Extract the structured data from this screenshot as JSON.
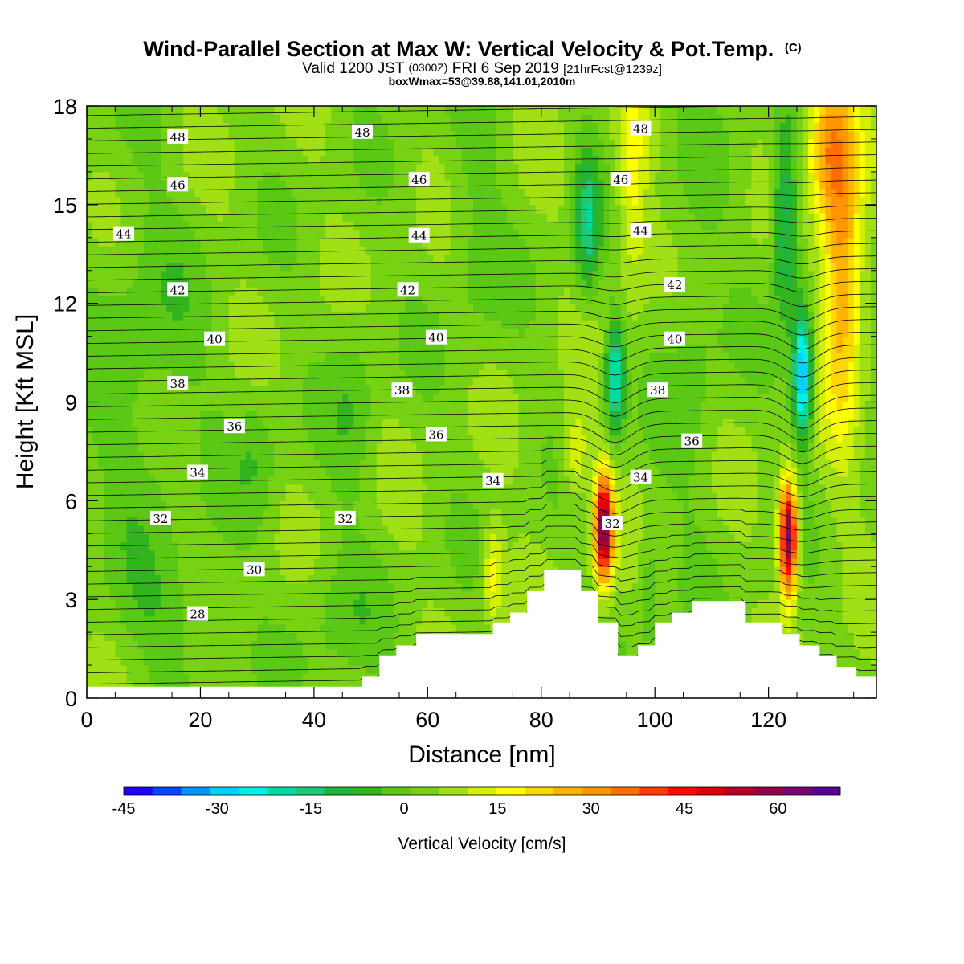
{
  "header": {
    "title_main": "Wind-Parallel Section at Max W: Vertical Velocity & Pot.Temp.",
    "title_mark": "(C)",
    "valid_a": "Valid 1200 JST",
    "valid_b": "(0300Z)",
    "valid_c": "FRI 6 Sep 2019",
    "valid_d": "[21hrFcst@1239z]",
    "boxmax": "boxWmax=53@39.88,141.01,2010m"
  },
  "chart_data": {
    "type": "heatmap",
    "xlabel": "Distance [nm]",
    "ylabel": "Height [Kft MSL]",
    "xlim": [
      0,
      139
    ],
    "ylim": [
      0,
      18
    ],
    "x_ticks": [
      "0",
      "20",
      "40",
      "60",
      "80",
      "100",
      "120"
    ],
    "y_ticks": [
      "0",
      "3",
      "6",
      "9",
      "12",
      "15",
      "18"
    ],
    "colorbar": {
      "label": "Vertical Velocity [cm/s]",
      "range": [
        -45,
        70
      ],
      "tick_labels": [
        "-45",
        "-30",
        "-15",
        "0",
        "15",
        "30",
        "45",
        "60"
      ],
      "colors": [
        "#1e00ff",
        "#0046ff",
        "#0096ff",
        "#00d2ff",
        "#00f0e8",
        "#00dca0",
        "#1ec878",
        "#20b43a",
        "#32b41e",
        "#5ac814",
        "#78d214",
        "#a0e014",
        "#d2f000",
        "#ffff00",
        "#ffd700",
        "#ffb400",
        "#ff9600",
        "#ff6e00",
        "#ff3c00",
        "#ff0a00",
        "#dc0000",
        "#b40028",
        "#960046",
        "#780078",
        "#5a0096"
      ],
      "color_domain": [
        "-45",
        "70"
      ]
    },
    "theta_contour_labels": [
      {
        "text": "28",
        "x": 19.5,
        "y": 2.55
      },
      {
        "text": "30",
        "x": 29.5,
        "y": 3.9
      },
      {
        "text": "32",
        "x": 13.0,
        "y": 5.45
      },
      {
        "text": "32",
        "x": 45.5,
        "y": 5.45
      },
      {
        "text": "32",
        "x": 92.5,
        "y": 5.3
      },
      {
        "text": "34",
        "x": 19.5,
        "y": 6.85
      },
      {
        "text": "34",
        "x": 71.5,
        "y": 6.6
      },
      {
        "text": "34",
        "x": 97.5,
        "y": 6.7
      },
      {
        "text": "36",
        "x": 26.0,
        "y": 8.25
      },
      {
        "text": "36",
        "x": 61.5,
        "y": 8.0
      },
      {
        "text": "36",
        "x": 106.5,
        "y": 7.8
      },
      {
        "text": "38",
        "x": 16.0,
        "y": 9.55
      },
      {
        "text": "38",
        "x": 55.5,
        "y": 9.35
      },
      {
        "text": "38",
        "x": 100.5,
        "y": 9.35
      },
      {
        "text": "40",
        "x": 22.5,
        "y": 10.9
      },
      {
        "text": "40",
        "x": 61.5,
        "y": 10.95
      },
      {
        "text": "40",
        "x": 103.5,
        "y": 10.9
      },
      {
        "text": "42",
        "x": 16.0,
        "y": 12.4
      },
      {
        "text": "42",
        "x": 56.5,
        "y": 12.4
      },
      {
        "text": "42",
        "x": 103.5,
        "y": 12.55
      },
      {
        "text": "44",
        "x": 6.5,
        "y": 14.1
      },
      {
        "text": "44",
        "x": 58.5,
        "y": 14.05
      },
      {
        "text": "44",
        "x": 97.5,
        "y": 14.2
      },
      {
        "text": "46",
        "x": 16.0,
        "y": 15.6
      },
      {
        "text": "46",
        "x": 58.5,
        "y": 15.75
      },
      {
        "text": "46",
        "x": 94.0,
        "y": 15.75
      },
      {
        "text": "48",
        "x": 16.0,
        "y": 17.05
      },
      {
        "text": "48",
        "x": 48.5,
        "y": 17.2
      },
      {
        "text": "48",
        "x": 97.5,
        "y": 17.3
      }
    ],
    "terrain_kft": [
      {
        "x": 0,
        "h": 0.35
      },
      {
        "x": 48.5,
        "h": 0.35
      },
      {
        "x": 48.5,
        "h": 0.65
      },
      {
        "x": 51.5,
        "h": 0.65
      },
      {
        "x": 51.5,
        "h": 1.3
      },
      {
        "x": 54.5,
        "h": 1.3
      },
      {
        "x": 54.5,
        "h": 1.6
      },
      {
        "x": 58,
        "h": 1.6
      },
      {
        "x": 58,
        "h": 1.95
      },
      {
        "x": 71.5,
        "h": 1.95
      },
      {
        "x": 71.5,
        "h": 2.3
      },
      {
        "x": 74.5,
        "h": 2.3
      },
      {
        "x": 74.5,
        "h": 2.6
      },
      {
        "x": 77.5,
        "h": 2.6
      },
      {
        "x": 77.5,
        "h": 3.25
      },
      {
        "x": 80.5,
        "h": 3.25
      },
      {
        "x": 80.5,
        "h": 3.9
      },
      {
        "x": 87,
        "h": 3.9
      },
      {
        "x": 87,
        "h": 3.25
      },
      {
        "x": 90,
        "h": 3.25
      },
      {
        "x": 90,
        "h": 2.3
      },
      {
        "x": 93.5,
        "h": 2.3
      },
      {
        "x": 93.5,
        "h": 1.3
      },
      {
        "x": 97,
        "h": 1.3
      },
      {
        "x": 97,
        "h": 1.6
      },
      {
        "x": 100,
        "h": 1.6
      },
      {
        "x": 100,
        "h": 2.3
      },
      {
        "x": 103,
        "h": 2.3
      },
      {
        "x": 103,
        "h": 2.6
      },
      {
        "x": 106.5,
        "h": 2.6
      },
      {
        "x": 106.5,
        "h": 2.95
      },
      {
        "x": 116,
        "h": 2.95
      },
      {
        "x": 116,
        "h": 2.3
      },
      {
        "x": 122.5,
        "h": 2.3
      },
      {
        "x": 122.5,
        "h": 1.95
      },
      {
        "x": 125.5,
        "h": 1.95
      },
      {
        "x": 125.5,
        "h": 1.6
      },
      {
        "x": 129,
        "h": 1.6
      },
      {
        "x": 129,
        "h": 1.3
      },
      {
        "x": 132,
        "h": 1.3
      },
      {
        "x": 132,
        "h": 0.95
      },
      {
        "x": 135.5,
        "h": 0.95
      },
      {
        "x": 135.5,
        "h": 0.65
      },
      {
        "x": 139,
        "h": 0.65
      }
    ],
    "w_features": [
      {
        "x": 91,
        "y": 5.2,
        "sx": 1.6,
        "sy": 1.6,
        "amp": 60
      },
      {
        "x": 123.5,
        "y": 4.9,
        "sx": 1.5,
        "sy": 1.7,
        "amp": 62
      },
      {
        "x": 71.5,
        "y": 3.8,
        "sx": 1.8,
        "sy": 1.4,
        "amp": 15
      },
      {
        "x": 86,
        "y": 7.4,
        "sx": 2.5,
        "sy": 1.4,
        "amp": 12
      },
      {
        "x": 93,
        "y": 9.8,
        "sx": 1.6,
        "sy": 1.7,
        "amp": -30
      },
      {
        "x": 88,
        "y": 14.5,
        "sx": 2.2,
        "sy": 2.2,
        "amp": -20
      },
      {
        "x": 96,
        "y": 15.5,
        "sx": 2.8,
        "sy": 3.2,
        "amp": 14
      },
      {
        "x": 126,
        "y": 9.8,
        "sx": 1.7,
        "sy": 1.9,
        "amp": -40
      },
      {
        "x": 123,
        "y": 14.5,
        "sx": 2.2,
        "sy": 2.8,
        "amp": -22
      },
      {
        "x": 133,
        "y": 13.5,
        "sx": 3.5,
        "sy": 5,
        "amp": 28
      },
      {
        "x": 130,
        "y": 17,
        "sx": 3.5,
        "sy": 2.2,
        "amp": 20
      },
      {
        "x": 10,
        "y": 10,
        "sx": 10,
        "sy": 6,
        "amp": -6
      },
      {
        "x": 30,
        "y": 7.5,
        "sx": 4,
        "sy": 2.2,
        "amp": -6
      },
      {
        "x": 47,
        "y": 9,
        "sx": 4,
        "sy": 3,
        "amp": -6
      },
      {
        "x": 68,
        "y": 14,
        "sx": 5,
        "sy": 4,
        "amp": -5
      },
      {
        "x": 107,
        "y": 11,
        "sx": 5,
        "sy": 6,
        "amp": -5
      },
      {
        "x": 15,
        "y": 2.5,
        "sx": 10,
        "sy": 2,
        "amp": -5
      },
      {
        "x": 44,
        "y": 2.5,
        "sx": 7,
        "sy": 2.2,
        "amp": -5
      },
      {
        "x": 99,
        "y": 3.5,
        "sx": 2,
        "sy": 2,
        "amp": -8
      }
    ],
    "w_background": 4
  }
}
